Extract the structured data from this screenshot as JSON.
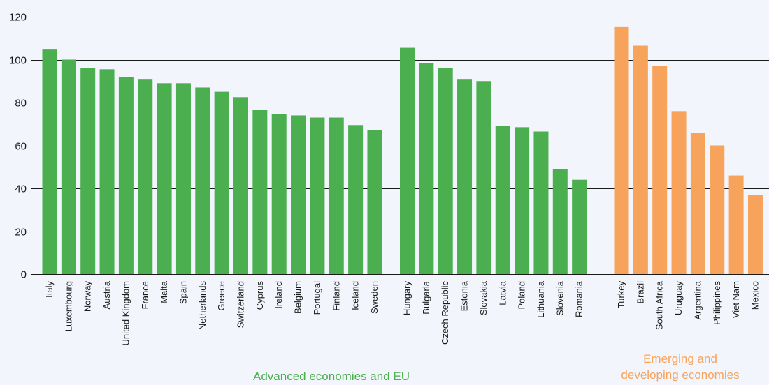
{
  "chart_data": {
    "type": "bar",
    "title": "",
    "xlabel": "",
    "ylabel": "",
    "ylim": [
      0,
      120
    ],
    "yticks": [
      0,
      20,
      40,
      60,
      80,
      100,
      120
    ],
    "grid": true,
    "groups": [
      {
        "name": "Advanced economies and EU",
        "color": "#4bae4f",
        "label_color": "#4bae4f",
        "categories": [
          "Italy",
          "Luxembourg",
          "Norway",
          "Austria",
          "United Kingdom",
          "France",
          "Malta",
          "Spain",
          "Netherlands",
          "Greece",
          "Switzerland",
          "Cyprus",
          "Ireland",
          "Belgium",
          "Portugal",
          "Finland",
          "Iceland",
          "Sweden"
        ],
        "values": [
          105,
          100,
          96,
          95.5,
          92,
          91,
          89,
          89,
          87,
          85,
          82.5,
          76.5,
          74.5,
          74,
          73,
          73,
          69.5,
          67
        ]
      },
      {
        "name": "",
        "color": "#4bae4f",
        "label_color": "#4bae4f",
        "categories": [
          "Hungary",
          "Bulgaria",
          "Czech Republic",
          "Estonia",
          "Slovakia",
          "Latvia",
          "Poland",
          "Lithuania",
          "Slovenia",
          "Romania"
        ],
        "values": [
          105.5,
          98.5,
          96,
          91,
          90,
          69,
          68.5,
          66.5,
          49,
          44
        ]
      },
      {
        "name": "Emerging and developing economies",
        "color": "#f7a35c",
        "label_color": "#f7a35c",
        "categories": [
          "Turkey",
          "Brazil",
          "South Africa",
          "Uruguay",
          "Argentina",
          "Philippines",
          "Viet Nam",
          "Mexico"
        ],
        "values": [
          115.5,
          106.5,
          97,
          76,
          66,
          60,
          46,
          37
        ]
      }
    ],
    "group_labels": [
      {
        "lines": [
          "Advanced economies and EU"
        ],
        "color": "#4bae4f"
      },
      {
        "lines": [
          "Emerging and",
          "developing economies"
        ],
        "color": "#f7a35c"
      }
    ]
  }
}
